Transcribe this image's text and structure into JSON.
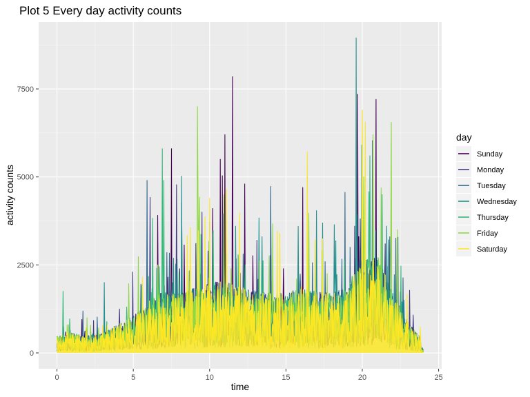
{
  "chart_data": {
    "type": "line",
    "title": "Plot 5 Every day activity counts",
    "xlabel": "time",
    "ylabel": "activity counts",
    "xlim": [
      -1.2,
      25.2
    ],
    "ylim": [
      -450,
      9400
    ],
    "x_ticks": [
      0,
      5,
      10,
      15,
      20,
      25
    ],
    "y_ticks": [
      0,
      2500,
      5000,
      7500
    ],
    "x_tick_labels": [
      "0",
      "5",
      "10",
      "15",
      "20",
      "25"
    ],
    "y_tick_labels": [
      "0",
      "2500",
      "5000",
      "7500"
    ],
    "grid": true,
    "legend": {
      "title": "day",
      "position": "right",
      "entries": [
        "Sunday",
        "Monday",
        "Tuesday",
        "Wednesday",
        "Thursday",
        "Friday",
        "Saturday"
      ]
    },
    "colors": {
      "panel_bg": "#ebebeb",
      "grid_major": "#ffffff",
      "Sunday": "#440154",
      "Monday": "#443a83",
      "Tuesday": "#31688e",
      "Wednesday": "#21908d",
      "Thursday": "#35b779",
      "Friday": "#8fd744",
      "Saturday": "#fde725"
    },
    "x_range": [
      0,
      24
    ],
    "baseline_by_hour": [
      [
        0,
        300
      ],
      [
        1,
        350
      ],
      [
        2,
        300
      ],
      [
        3,
        350
      ],
      [
        4,
        500
      ],
      [
        5,
        650
      ],
      [
        6,
        900
      ],
      [
        7,
        1100
      ],
      [
        8,
        1050
      ],
      [
        9,
        1150
      ],
      [
        10,
        1250
      ],
      [
        11,
        1250
      ],
      [
        12,
        1150
      ],
      [
        13,
        1100
      ],
      [
        14,
        1050
      ],
      [
        15,
        1050
      ],
      [
        16,
        1150
      ],
      [
        17,
        1100
      ],
      [
        18,
        1050
      ],
      [
        19,
        1150
      ],
      [
        20,
        1650
      ],
      [
        21,
        1700
      ],
      [
        22,
        1050
      ],
      [
        23,
        550
      ],
      [
        24,
        200
      ]
    ],
    "series": [
      {
        "name": "Sunday",
        "peaks": [
          [
            11.5,
            7850
          ],
          [
            11.0,
            6200
          ],
          [
            10.7,
            5500
          ],
          [
            7.5,
            5800
          ],
          [
            12.3,
            4800
          ],
          [
            16.1,
            4700
          ],
          [
            20.9,
            7200
          ],
          [
            19.7,
            7350
          ],
          [
            10.2,
            4100
          ]
        ]
      },
      {
        "name": "Monday",
        "peaks": [
          [
            9.5,
            4000
          ],
          [
            13.1,
            3200
          ],
          [
            19.5,
            3600
          ],
          [
            21.5,
            3100
          ]
        ]
      },
      {
        "name": "Tuesday",
        "peaks": [
          [
            5.9,
            4900
          ],
          [
            19.2,
            3000
          ],
          [
            21.8,
            3300
          ]
        ]
      },
      {
        "name": "Wednesday",
        "peaks": [
          [
            19.6,
            8950
          ],
          [
            3.1,
            2000
          ],
          [
            21.6,
            3600
          ]
        ]
      },
      {
        "name": "Thursday",
        "peaks": [
          [
            6.9,
            5800
          ],
          [
            7.0,
            4900
          ],
          [
            0.4,
            1750
          ],
          [
            21.3,
            4500
          ],
          [
            20.5,
            5600
          ]
        ]
      },
      {
        "name": "Friday",
        "peaks": [
          [
            9.2,
            7000
          ],
          [
            20.7,
            6200
          ],
          [
            21.9,
            6550
          ],
          [
            20.1,
            5000
          ],
          [
            6.6,
            2500
          ],
          [
            22.3,
            3500
          ]
        ]
      },
      {
        "name": "Saturday",
        "peaks": [
          [
            20.0,
            6900
          ],
          [
            16.4,
            5700
          ],
          [
            10.0,
            4400
          ],
          [
            20.2,
            6550
          ],
          [
            14.6,
            3400
          ],
          [
            16.9,
            3200
          ]
        ]
      }
    ]
  }
}
